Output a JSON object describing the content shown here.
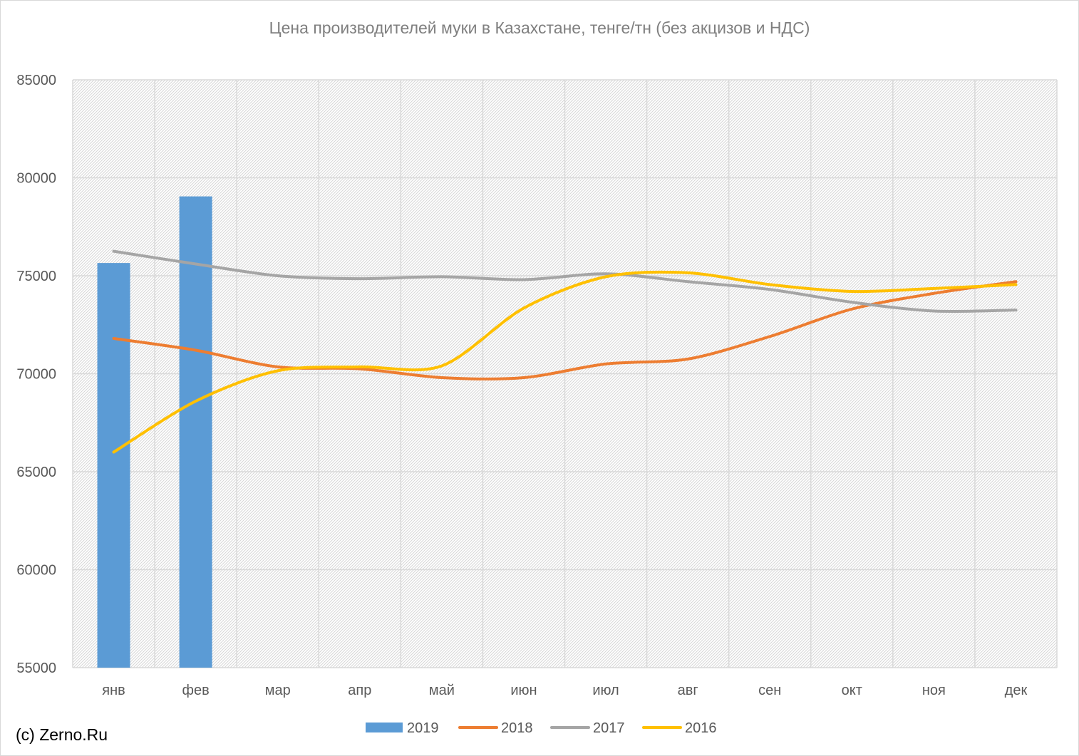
{
  "chart_data": {
    "type": "bar+line",
    "title": "Цена производителей муки в Казахстане, тенге/тн (без акцизов и НДС)",
    "categories": [
      "янв",
      "фев",
      "мар",
      "апр",
      "май",
      "июн",
      "июл",
      "авг",
      "сен",
      "окт",
      "ноя",
      "дек"
    ],
    "ylim": [
      55000,
      85000
    ],
    "yticks": [
      55000,
      60000,
      65000,
      70000,
      75000,
      80000,
      85000
    ],
    "grid": true,
    "legend_position": "bottom",
    "series": [
      {
        "name": "2019",
        "type": "bar",
        "color": "#5b9bd5",
        "values": [
          75650,
          79050,
          null,
          null,
          null,
          null,
          null,
          null,
          null,
          null,
          null,
          null
        ]
      },
      {
        "name": "2018",
        "type": "line",
        "color": "#ed7d31",
        "values": [
          71800,
          71200,
          70350,
          70250,
          69800,
          69800,
          70500,
          70750,
          71900,
          73300,
          74100,
          74700
        ]
      },
      {
        "name": "2017",
        "type": "line",
        "color": "#a5a5a5",
        "values": [
          76250,
          75600,
          75000,
          74850,
          74950,
          74800,
          75100,
          74700,
          74300,
          73650,
          73200,
          73250
        ]
      },
      {
        "name": "2016",
        "type": "line",
        "color": "#ffc000",
        "values": [
          66000,
          68600,
          70150,
          70350,
          70400,
          73350,
          74950,
          75150,
          74550,
          74200,
          74350,
          74550
        ]
      }
    ]
  },
  "credit": "(c) Zerno.Ru"
}
